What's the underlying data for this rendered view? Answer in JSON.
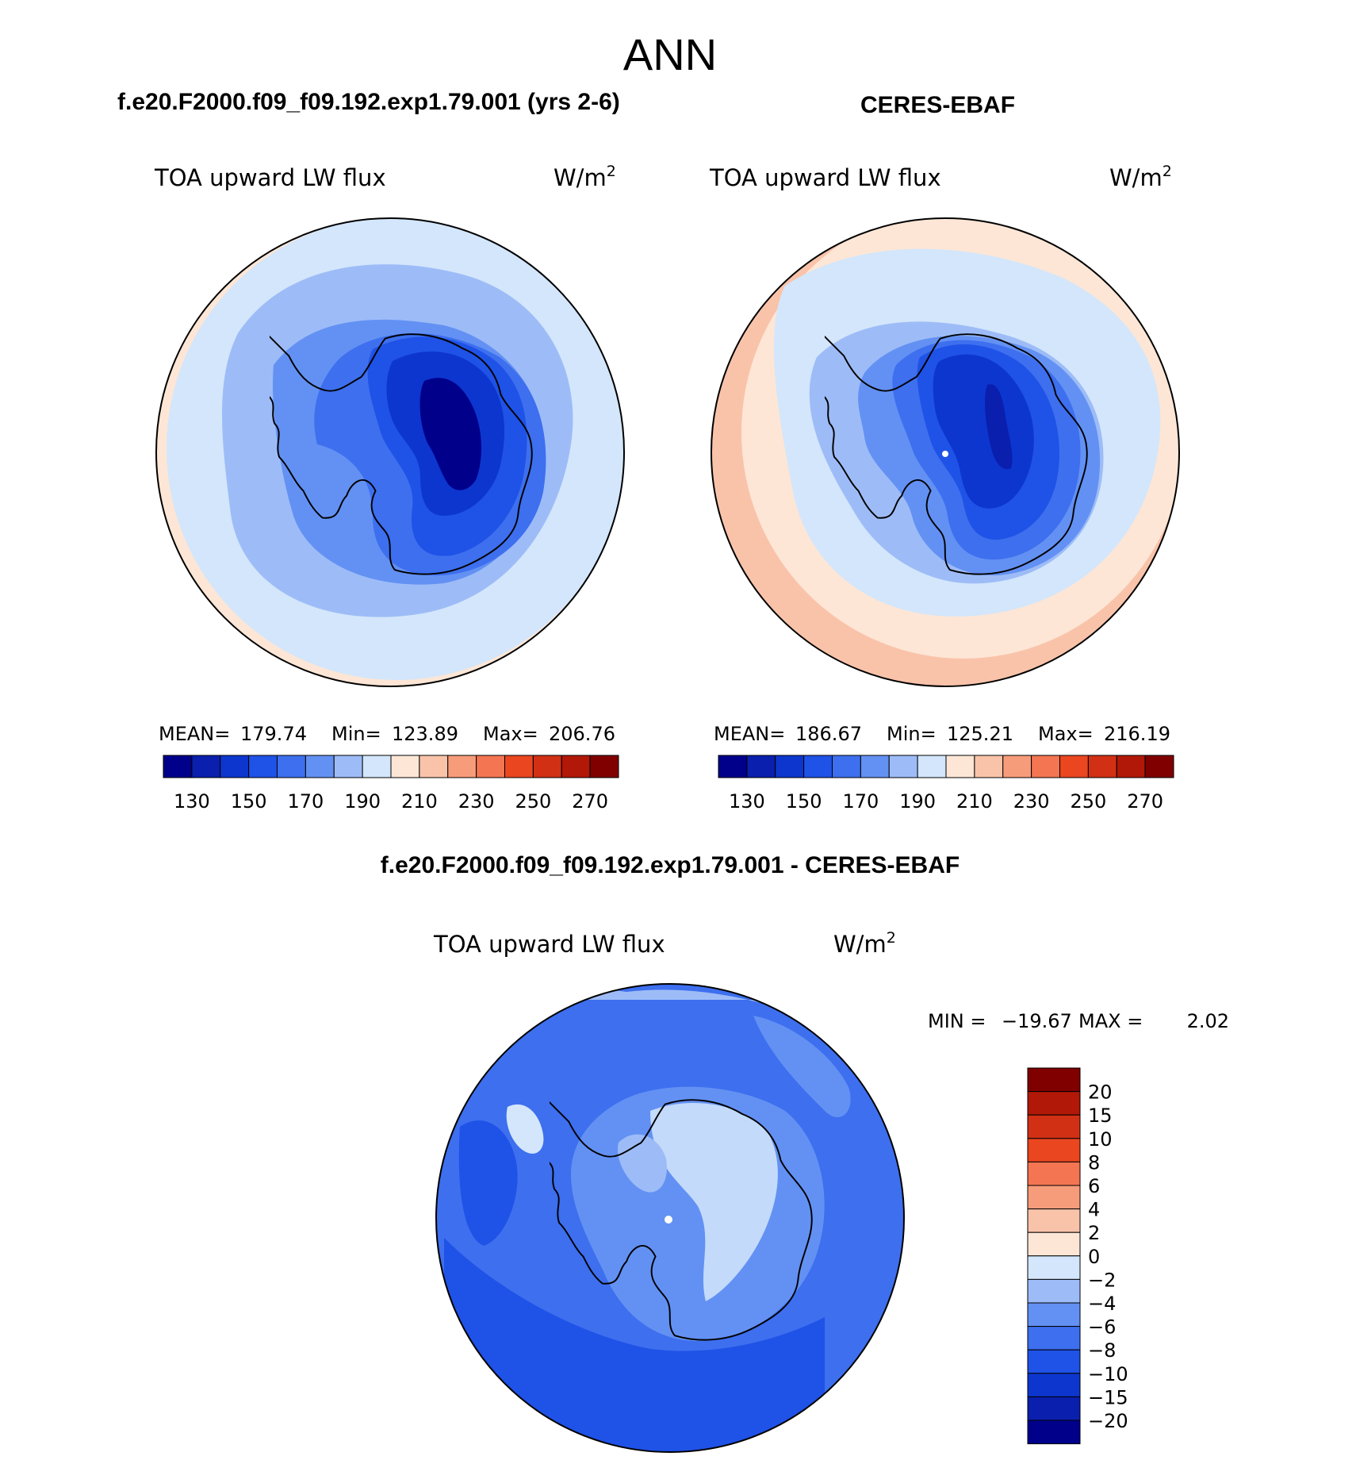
{
  "figure": {
    "season": "ANN",
    "panels": [
      {
        "id": "model",
        "case_title": "f.e20.F2000.f09_f09.192.exp1.79.001 (yrs 2-6)",
        "variable": "TOA upward LW flux",
        "units": "W/m",
        "units_exp": "2",
        "stats": {
          "mean_label": "MEAN=",
          "mean": "179.74",
          "min_label": "Min=",
          "min": "123.89",
          "max_label": "Max=",
          "max": "206.76"
        }
      },
      {
        "id": "obs",
        "case_title": "CERES-EBAF",
        "variable": "TOA upward LW flux",
        "units": "W/m",
        "units_exp": "2",
        "stats": {
          "mean_label": "MEAN=",
          "mean": "186.67",
          "min_label": "Min=",
          "min": "125.21",
          "max_label": "Max=",
          "max": "216.19"
        }
      }
    ],
    "diff": {
      "title": "f.e20.F2000.f09_f09.192.exp1.79.001 - CERES-EBAF",
      "variable": "TOA upward LW flux",
      "units": "W/m",
      "units_exp": "2",
      "min_label": "MIN =",
      "min": "−19.67",
      "max_label": "MAX =",
      "max": "2.02"
    }
  },
  "chart_data": [
    {
      "type": "heatmap",
      "title": "TOA upward LW flux (model)",
      "units": "W/m2",
      "projection": "south polar stereographic",
      "levels": [
        130,
        140,
        150,
        160,
        170,
        180,
        190,
        200,
        210,
        220,
        230,
        240,
        250,
        260,
        270
      ],
      "colorbar_tick_labels": [
        "130",
        "150",
        "170",
        "190",
        "210",
        "230",
        "250",
        "270"
      ],
      "colors": [
        "#00008b",
        "#0a1fae",
        "#0d36cf",
        "#1f52e6",
        "#3d6fef",
        "#6391f3",
        "#9dbcf7",
        "#d3e6fb",
        "#fde6d6",
        "#f9c3aa",
        "#f79c7a",
        "#f47552",
        "#ea4620",
        "#d23014",
        "#b21807",
        "#800000"
      ],
      "mean": 179.74,
      "min": 123.89,
      "max": 206.76
    },
    {
      "type": "heatmap",
      "title": "TOA upward LW flux (CERES-EBAF)",
      "units": "W/m2",
      "projection": "south polar stereographic",
      "levels": [
        130,
        140,
        150,
        160,
        170,
        180,
        190,
        200,
        210,
        220,
        230,
        240,
        250,
        260,
        270
      ],
      "colorbar_tick_labels": [
        "130",
        "150",
        "170",
        "190",
        "210",
        "230",
        "250",
        "270"
      ],
      "colors": [
        "#00008b",
        "#0a1fae",
        "#0d36cf",
        "#1f52e6",
        "#3d6fef",
        "#6391f3",
        "#9dbcf7",
        "#d3e6fb",
        "#fde6d6",
        "#f9c3aa",
        "#f79c7a",
        "#f47552",
        "#ea4620",
        "#d23014",
        "#b21807",
        "#800000"
      ],
      "mean": 186.67,
      "min": 125.21,
      "max": 216.19
    },
    {
      "type": "heatmap",
      "title": "TOA upward LW flux (difference)",
      "units": "W/m2",
      "projection": "south polar stereographic",
      "levels_labels": [
        "20",
        "15",
        "10",
        "8",
        "6",
        "4",
        "2",
        "0",
        "−2",
        "−4",
        "−6",
        "−8",
        "−10",
        "−15",
        "−20"
      ],
      "colors_top_to_bottom": [
        "#800000",
        "#b21807",
        "#d23014",
        "#ea4620",
        "#f47552",
        "#f79c7a",
        "#f9c3aa",
        "#fde6d6",
        "#d3e6fb",
        "#9dbcf7",
        "#6391f3",
        "#3d6fef",
        "#1f52e6",
        "#0d36cf",
        "#0a1fae",
        "#00008b"
      ],
      "min": -19.67,
      "max": 2.02
    }
  ]
}
